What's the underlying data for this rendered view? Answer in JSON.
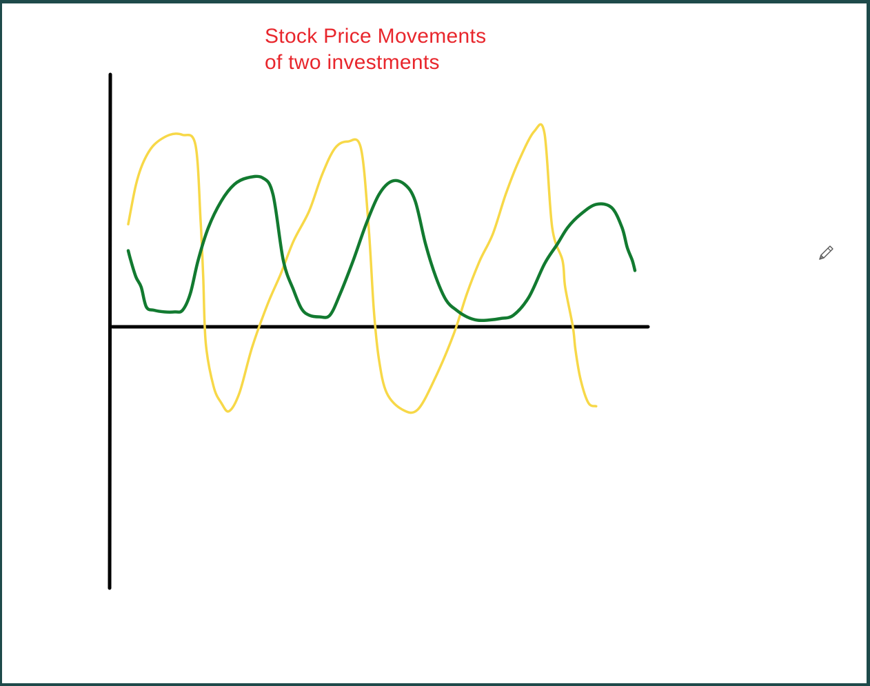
{
  "canvas": {
    "background": "#ffffff",
    "border_color": "#1e4a4a",
    "cursor_icon": "pencil-icon"
  },
  "chart_data": {
    "type": "line",
    "title": "Stock Price Movements\nof two investments",
    "title_color": "#e8262c",
    "xlabel": "",
    "ylabel": "",
    "xlim": [
      0,
      10
    ],
    "ylim": [
      -5,
      10
    ],
    "grid": false,
    "legend": "none",
    "axis_color": "#000000",
    "series": [
      {
        "color": "#f7d848",
        "x": [
          0.0,
          0.15,
          0.3,
          0.5,
          0.8,
          1.05,
          1.3,
          1.4,
          1.45,
          1.5,
          1.65,
          1.8,
          1.95,
          2.15,
          2.4,
          2.7,
          2.95,
          3.2,
          3.5,
          3.75,
          4.0,
          4.25,
          4.5,
          4.65,
          4.75,
          4.85,
          5.0,
          5.3,
          5.6,
          5.95,
          6.3,
          6.55,
          6.8,
          7.05,
          7.3,
          7.55,
          7.85,
          8.05,
          8.2,
          8.4,
          8.45,
          8.6,
          8.65,
          8.75,
          8.9,
          9.05
        ],
        "y": [
          3.1,
          4.3,
          5.0,
          5.5,
          5.8,
          5.8,
          5.5,
          3.2,
          1.5,
          -0.5,
          -1.8,
          -2.3,
          -2.55,
          -2.0,
          -0.6,
          0.7,
          1.6,
          2.6,
          3.5,
          4.6,
          5.4,
          5.6,
          5.4,
          3.0,
          0.5,
          -1.0,
          -2.0,
          -2.5,
          -2.5,
          -1.5,
          -0.2,
          1.0,
          2.0,
          2.8,
          4.0,
          5.0,
          5.9,
          5.85,
          3.0,
          2.0,
          1.2,
          0.0,
          -0.7,
          -1.6,
          -2.3,
          -2.4
        ]
      },
      {
        "color": "#127a30",
        "x": [
          0.0,
          0.05,
          0.15,
          0.25,
          0.35,
          0.5,
          0.7,
          0.9,
          1.05,
          1.2,
          1.35,
          1.55,
          1.8,
          2.05,
          2.3,
          2.6,
          2.8,
          3.0,
          3.2,
          3.35,
          3.5,
          3.7,
          3.9,
          4.1,
          4.35,
          4.6,
          4.85,
          5.1,
          5.35,
          5.55,
          5.75,
          5.95,
          6.15,
          6.35,
          6.55,
          6.75,
          6.95,
          7.2,
          7.45,
          7.75,
          8.05,
          8.3,
          8.5,
          8.75,
          9.05,
          9.35,
          9.55,
          9.65,
          9.75,
          9.8
        ],
        "y": [
          2.3,
          2.0,
          1.5,
          1.2,
          0.6,
          0.5,
          0.45,
          0.45,
          0.5,
          1.0,
          2.0,
          3.0,
          3.8,
          4.3,
          4.5,
          4.5,
          4.0,
          2.0,
          1.1,
          0.55,
          0.35,
          0.3,
          0.35,
          1.0,
          2.0,
          3.1,
          4.0,
          4.4,
          4.3,
          3.8,
          2.5,
          1.5,
          0.8,
          0.5,
          0.3,
          0.2,
          0.2,
          0.25,
          0.35,
          0.9,
          1.9,
          2.5,
          3.0,
          3.4,
          3.7,
          3.6,
          3.0,
          2.4,
          2.0,
          1.7
        ]
      }
    ]
  }
}
